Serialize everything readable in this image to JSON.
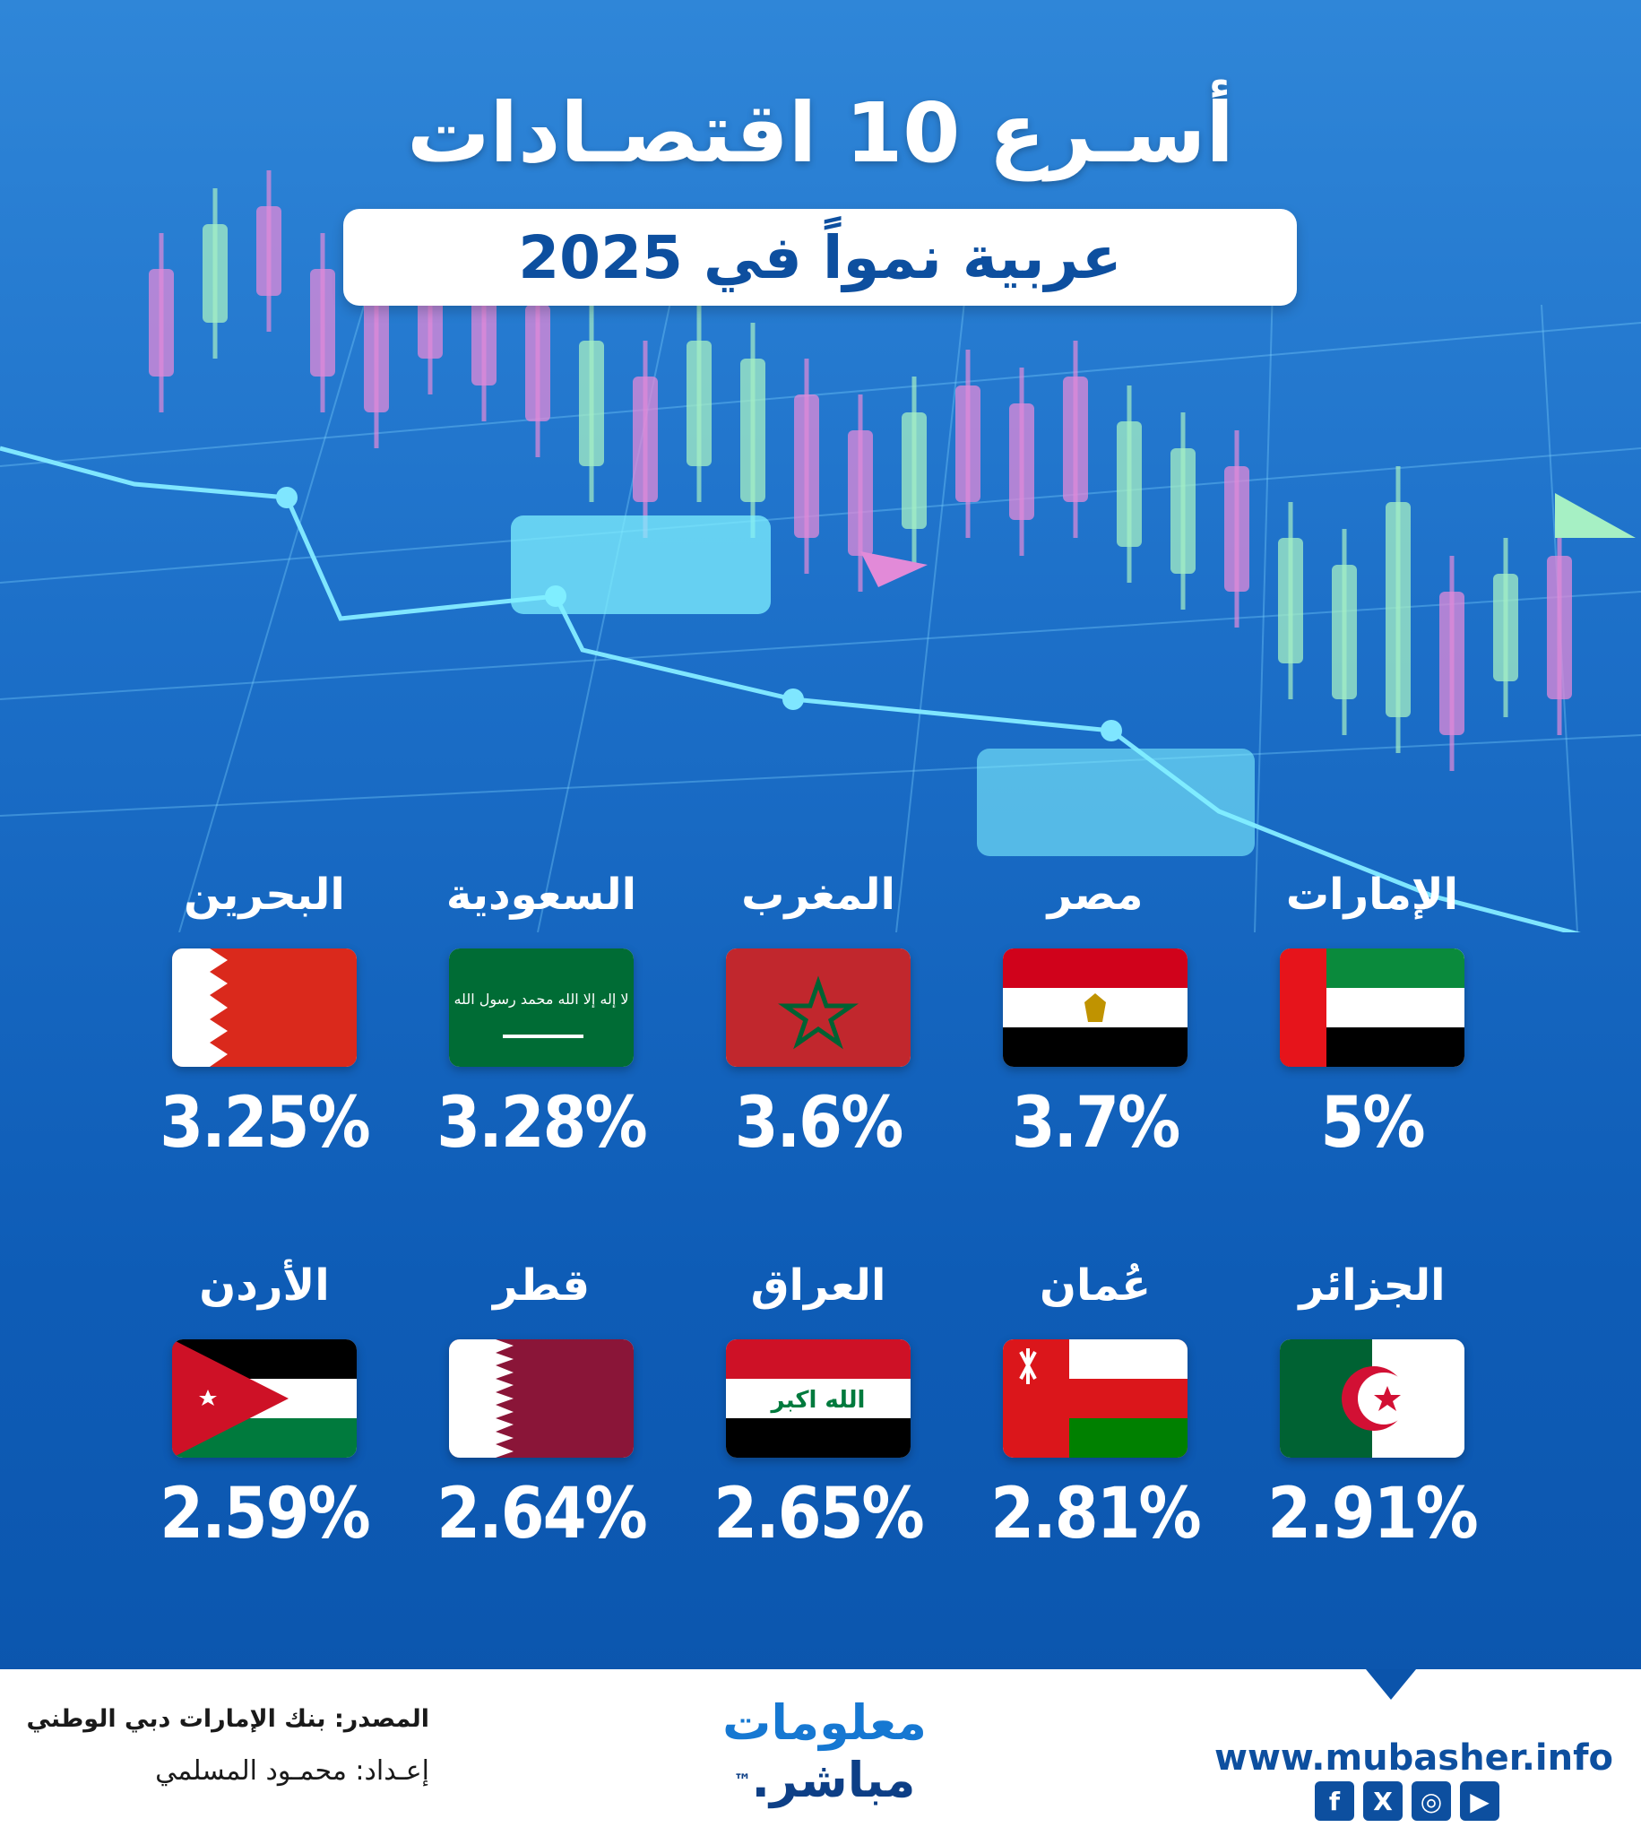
{
  "title": "أسـرع 10 اقتصـادات",
  "subtitle": "عربية نمواً في 2025",
  "countries": [
    {
      "name": "الإمارات",
      "value": "5%"
    },
    {
      "name": "مصر",
      "value": "3.7%"
    },
    {
      "name": "المغرب",
      "value": "3.6%"
    },
    {
      "name": "السعودية",
      "value": "3.28%"
    },
    {
      "name": "البحرين",
      "value": "3.25%"
    },
    {
      "name": "الجزائر",
      "value": "2.91%"
    },
    {
      "name": "عُمان",
      "value": "2.81%"
    },
    {
      "name": "العراق",
      "value": "2.65%"
    },
    {
      "name": "قطر",
      "value": "2.64%"
    },
    {
      "name": "الأردن",
      "value": "2.59%"
    }
  ],
  "flag_text": {
    "saudi": "لا إله إلا الله محمد رسول الله",
    "iraq": "الله اكبر"
  },
  "footer": {
    "source": "المصدر: بنك الإمارات دبي الوطني",
    "prepared_by": "إعـداد: محمـود المسلمي",
    "logo_line1": "معلومات",
    "logo_line2": "مباشر.",
    "logo_tm": "™",
    "website": "www.mubasher.info",
    "socials": [
      {
        "icon": "facebook-icon",
        "glyph": "f"
      },
      {
        "icon": "x-icon",
        "glyph": "X"
      },
      {
        "icon": "instagram-icon",
        "glyph": "◎"
      },
      {
        "icon": "youtube-icon",
        "glyph": "▶"
      }
    ]
  },
  "colors": {
    "background": "#1c6fc8",
    "accent_dark": "#0d4f9f",
    "candle_pink": "#e28ad8",
    "candle_green": "#a6f0c4"
  }
}
